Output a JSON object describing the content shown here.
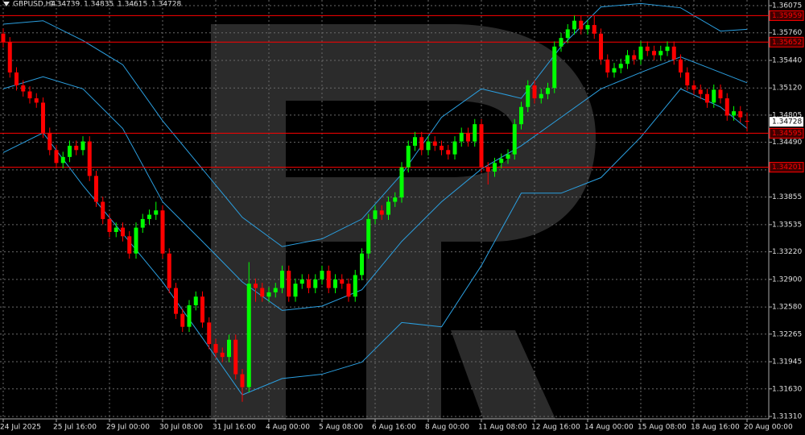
{
  "chart_data": {
    "type": "candlestick",
    "symbol": "GBPUSD,H4",
    "grid": true,
    "up_color": "#00ff00",
    "down_color": "#ff0000",
    "categories": [
      "24 Jul 2025",
      null,
      null,
      null,
      null,
      null,
      null,
      null,
      "25 Jul 16:00",
      null,
      null,
      null,
      null,
      null,
      null,
      null,
      "29 Jul 00:00",
      null,
      null,
      null,
      null,
      null,
      null,
      null,
      "30 Jul 08:00",
      null,
      null,
      null,
      null,
      null,
      null,
      null,
      "31 Jul 16:00",
      null,
      null,
      null,
      null,
      null,
      null,
      null,
      "4 Aug 00:00",
      null,
      null,
      null,
      null,
      null,
      null,
      null,
      "5 Aug 08:00",
      null,
      null,
      null,
      null,
      null,
      null,
      null,
      "6 Aug 16:00",
      null,
      null,
      null,
      null,
      null,
      null,
      null,
      "8 Aug 00:00",
      null,
      null,
      null,
      null,
      null,
      null,
      null,
      "11 Aug 08:00",
      null,
      null,
      null,
      null,
      null,
      null,
      null,
      "12 Aug 16:00",
      null,
      null,
      null,
      null,
      null,
      null,
      null,
      "14 Aug 00:00",
      null,
      null,
      null,
      null,
      null,
      null,
      null,
      "15 Aug 08:00",
      null,
      null,
      null,
      null,
      null,
      null,
      null,
      "18 Aug 16:00",
      null,
      null,
      null,
      null,
      null,
      null,
      null,
      "20 Aug 00:00"
    ],
    "open": [
      1.3575,
      1.3565,
      1.353,
      1.3515,
      1.3508,
      1.35,
      1.3495,
      1.346,
      1.344,
      1.3425,
      1.3432,
      1.3445,
      1.344,
      1.345,
      1.341,
      1.338,
      1.336,
      1.3345,
      1.335,
      1.334,
      1.332,
      1.335,
      1.336,
      1.3365,
      1.337,
      1.332,
      1.328,
      1.325,
      1.3235,
      1.326,
      1.327,
      1.324,
      1.3215,
      1.3205,
      1.32,
      1.322,
      1.318,
      1.3165,
      1.3285,
      1.328,
      1.327,
      1.3275,
      1.328,
      1.33,
      1.327,
      1.3285,
      1.329,
      1.328,
      1.329,
      1.33,
      1.328,
      1.329,
      1.3285,
      1.327,
      1.3295,
      1.332,
      1.336,
      1.337,
      1.3365,
      1.338,
      1.3385,
      1.342,
      1.3445,
      1.3455,
      1.344,
      1.345,
      1.3445,
      1.344,
      1.3435,
      1.345,
      1.346,
      1.345,
      1.347,
      1.342,
      1.3415,
      1.3425,
      1.343,
      1.3435,
      1.347,
      1.349,
      1.3515,
      1.35,
      1.3505,
      1.3512,
      1.356,
      1.357,
      1.358,
      1.359,
      1.358,
      1.3585,
      1.3575,
      1.3545,
      1.353,
      1.3535,
      1.354,
      1.355,
      1.3545,
      1.356,
      1.3555,
      1.355,
      1.3555,
      1.356,
      1.3545,
      1.353,
      1.3515,
      1.351,
      1.3505,
      1.3495,
      1.351,
      1.35,
      1.348,
      1.3485,
      1.34739
    ],
    "high": [
      1.3581,
      1.3571,
      1.3536,
      1.3521,
      1.3514,
      1.3506,
      1.3501,
      1.3466,
      1.3446,
      1.3438,
      1.3451,
      1.3451,
      1.3456,
      1.3456,
      1.3416,
      1.3386,
      1.3366,
      1.3356,
      1.3356,
      1.3346,
      1.3356,
      1.3366,
      1.3371,
      1.338,
      1.3376,
      1.3326,
      1.3286,
      1.3256,
      1.3266,
      1.3276,
      1.3276,
      1.3246,
      1.3221,
      1.3211,
      1.3226,
      1.3226,
      1.3186,
      1.331,
      1.3291,
      1.3286,
      1.3281,
      1.3286,
      1.3306,
      1.3306,
      1.3291,
      1.3296,
      1.3296,
      1.3296,
      1.3306,
      1.3306,
      1.3296,
      1.3296,
      1.3291,
      1.3301,
      1.3326,
      1.3366,
      1.3376,
      1.3376,
      1.3386,
      1.3391,
      1.3426,
      1.3451,
      1.3461,
      1.3461,
      1.3456,
      1.3456,
      1.3451,
      1.3446,
      1.3456,
      1.3466,
      1.3466,
      1.3476,
      1.3476,
      1.3426,
      1.3431,
      1.3436,
      1.3441,
      1.3476,
      1.3496,
      1.3521,
      1.3521,
      1.3511,
      1.3518,
      1.3566,
      1.3576,
      1.3586,
      1.3596,
      1.3596,
      1.3591,
      1.3596,
      1.3581,
      1.3551,
      1.3541,
      1.3546,
      1.3556,
      1.3556,
      1.3566,
      1.3566,
      1.3561,
      1.3561,
      1.3566,
      1.3566,
      1.3551,
      1.3536,
      1.3521,
      1.3516,
      1.3511,
      1.3516,
      1.3516,
      1.3506,
      1.3491,
      1.3491,
      1.34835
    ],
    "low": [
      1.3559,
      1.3524,
      1.3509,
      1.3502,
      1.3494,
      1.3489,
      1.3454,
      1.3434,
      1.3419,
      1.3419,
      1.3426,
      1.3434,
      1.3434,
      1.3404,
      1.3374,
      1.3354,
      1.3339,
      1.3339,
      1.3334,
      1.3314,
      1.3314,
      1.3344,
      1.3354,
      1.3359,
      1.3314,
      1.3274,
      1.3244,
      1.3229,
      1.3229,
      1.3254,
      1.3234,
      1.3209,
      1.3199,
      1.3194,
      1.3194,
      1.3174,
      1.3148,
      1.3159,
      1.3264,
      1.3264,
      1.3264,
      1.3269,
      1.3274,
      1.3264,
      1.3264,
      1.3279,
      1.3274,
      1.3274,
      1.3284,
      1.3274,
      1.3274,
      1.3279,
      1.3264,
      1.3264,
      1.3289,
      1.3314,
      1.3354,
      1.3359,
      1.3359,
      1.3374,
      1.3379,
      1.3414,
      1.3439,
      1.3434,
      1.3434,
      1.3439,
      1.3434,
      1.3429,
      1.3429,
      1.3444,
      1.3444,
      1.3444,
      1.3414,
      1.34,
      1.3409,
      1.3419,
      1.3424,
      1.3429,
      1.3464,
      1.3484,
      1.3494,
      1.3494,
      1.3499,
      1.3506,
      1.3554,
      1.3564,
      1.3574,
      1.3574,
      1.3574,
      1.3569,
      1.3539,
      1.3524,
      1.3524,
      1.3529,
      1.3534,
      1.3539,
      1.3539,
      1.3549,
      1.3544,
      1.3544,
      1.3549,
      1.3539,
      1.3524,
      1.3509,
      1.3504,
      1.3499,
      1.3489,
      1.3489,
      1.3494,
      1.3474,
      1.3474,
      1.3472,
      1.34615
    ],
    "close": [
      1.3565,
      1.353,
      1.3515,
      1.3508,
      1.35,
      1.3495,
      1.346,
      1.344,
      1.3425,
      1.3432,
      1.3445,
      1.344,
      1.345,
      1.341,
      1.338,
      1.336,
      1.3345,
      1.335,
      1.334,
      1.332,
      1.335,
      1.336,
      1.3365,
      1.337,
      1.332,
      1.328,
      1.325,
      1.3235,
      1.326,
      1.327,
      1.324,
      1.3215,
      1.3205,
      1.32,
      1.322,
      1.318,
      1.3165,
      1.3285,
      1.328,
      1.327,
      1.3275,
      1.328,
      1.33,
      1.327,
      1.3285,
      1.329,
      1.328,
      1.329,
      1.33,
      1.328,
      1.329,
      1.3285,
      1.327,
      1.3295,
      1.332,
      1.336,
      1.337,
      1.3365,
      1.338,
      1.3385,
      1.342,
      1.3445,
      1.3455,
      1.344,
      1.345,
      1.3445,
      1.344,
      1.3435,
      1.345,
      1.346,
      1.345,
      1.347,
      1.342,
      1.3415,
      1.3425,
      1.343,
      1.3435,
      1.347,
      1.349,
      1.3515,
      1.35,
      1.3505,
      1.3512,
      1.356,
      1.357,
      1.358,
      1.359,
      1.358,
      1.3585,
      1.3575,
      1.3545,
      1.353,
      1.3535,
      1.354,
      1.355,
      1.3545,
      1.356,
      1.3555,
      1.355,
      1.3555,
      1.356,
      1.3545,
      1.353,
      1.3515,
      1.351,
      1.3505,
      1.3495,
      1.351,
      1.35,
      1.348,
      1.3485,
      1.3478,
      1.34728
    ],
    "bands": {
      "color": "#2b9fe0",
      "x": [
        0,
        6,
        12,
        18,
        24,
        30,
        36,
        42,
        48,
        54,
        60,
        66,
        72,
        78,
        84,
        90,
        96,
        102,
        108,
        112
      ],
      "upper": [
        1.3586,
        1.359,
        1.3567,
        1.3539,
        1.3474,
        1.3418,
        1.3362,
        1.3328,
        1.3337,
        1.336,
        1.3412,
        1.3478,
        1.3511,
        1.35,
        1.356,
        1.3606,
        1.361,
        1.3605,
        1.3578,
        1.358
      ],
      "middle": [
        1.3511,
        1.3525,
        1.3511,
        1.3465,
        1.338,
        1.3334,
        1.3287,
        1.3254,
        1.3259,
        1.3278,
        1.3334,
        1.338,
        1.3418,
        1.3445,
        1.3478,
        1.3511,
        1.353,
        1.3548,
        1.353,
        1.3518
      ],
      "lower": [
        1.3437,
        1.346,
        1.3399,
        1.3343,
        1.3287,
        1.3222,
        1.3156,
        1.3175,
        1.318,
        1.3194,
        1.324,
        1.3235,
        1.3306,
        1.339,
        1.339,
        1.3408,
        1.3455,
        1.3511,
        1.349,
        1.3465
      ]
    },
    "levels": [
      {
        "value": 1.35959,
        "color": "#ff0000"
      },
      {
        "value": 1.35652,
        "color": "#ff0000"
      },
      {
        "value": 1.34595,
        "color": "#ff0000"
      },
      {
        "value": 1.34201,
        "color": "#ff0000"
      }
    ],
    "ylim": [
      1.3131,
      1.36075
    ],
    "yticks": [
      1.36075,
      {
        "value": 1.3576,
        "label": "1.35760"
      },
      {
        "value": 1.3544,
        "label": "1.35440"
      },
      {
        "value": 1.3512,
        "label": "1.35120"
      },
      1.34805,
      {
        "value": 1.3449,
        "label": "1.34490"
      },
      {
        "value": 1.3417,
        "label": "1.34170"
      },
      1.33855,
      1.33535,
      {
        "value": 1.3322,
        "label": "1.33220"
      },
      {
        "value": 1.329,
        "label": "1.32900"
      },
      {
        "value": 1.3258,
        "label": "1.32580"
      },
      1.32265,
      1.31945,
      {
        "value": 1.3163,
        "label": "1.31630"
      },
      {
        "value": 1.3131,
        "label": "1.31310"
      }
    ]
  }
}
